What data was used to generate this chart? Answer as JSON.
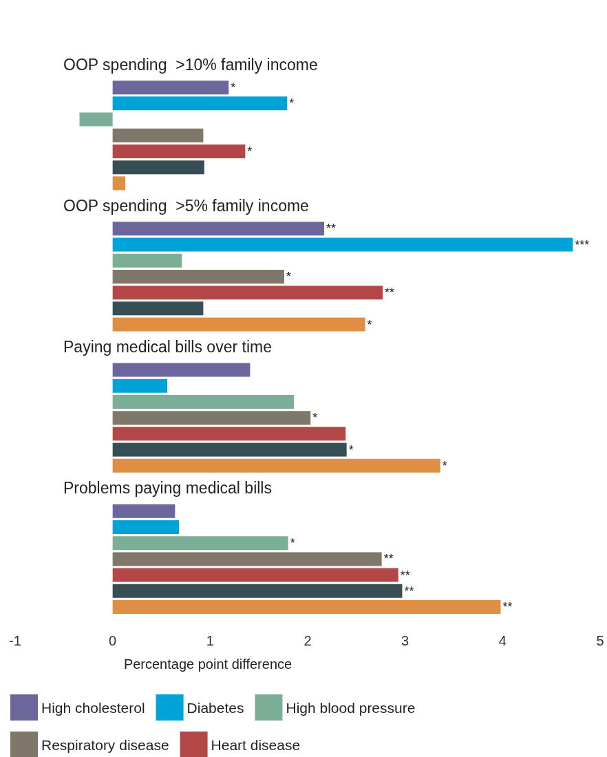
{
  "chart_data": {
    "type": "bar",
    "orientation": "horizontal",
    "xlabel": "Percentage point difference",
    "categories": [
      "OOP spending  >10% family income",
      "OOP spending  >5% family income",
      "Paying medical bills over time",
      "Problems paying medical bills"
    ],
    "xlim": [
      -1,
      5
    ],
    "xticks": [
      -1,
      0,
      1,
      2,
      3,
      4,
      5
    ],
    "legend": "bottom",
    "series": [
      {
        "name": "High cholesterol",
        "color": "#6b669b",
        "values": [
          1.19,
          2.17,
          1.41,
          0.64
        ],
        "value_labels": [
          "*",
          "**",
          null,
          null
        ]
      },
      {
        "name": "Diabetes",
        "color": "#00a3d6",
        "values": [
          1.79,
          4.72,
          0.56,
          0.68
        ],
        "value_labels": [
          "*",
          "***",
          null,
          null
        ]
      },
      {
        "name": "High blood pressure",
        "color": "#7aae96",
        "values": [
          -0.34,
          0.71,
          1.86,
          1.8
        ],
        "value_labels": [
          null,
          null,
          null,
          "*"
        ]
      },
      {
        "name": "Respiratory disease",
        "color": "#7f7769",
        "values": [
          0.93,
          1.76,
          2.03,
          2.76
        ],
        "value_labels": [
          null,
          "*",
          "*",
          "**"
        ]
      },
      {
        "name": "Heart disease",
        "color": "#b34747",
        "values": [
          1.36,
          2.77,
          2.39,
          2.93
        ],
        "value_labels": [
          "*",
          "**",
          null,
          "**"
        ]
      },
      {
        "color": "#374e55",
        "values": [
          0.94,
          0.93,
          2.4,
          2.97
        ],
        "value_labels": [
          null,
          null,
          "*",
          "**"
        ]
      },
      {
        "color": "#de8f44",
        "values": [
          0.13,
          2.59,
          3.36,
          3.98
        ],
        "value_labels": [
          null,
          "*",
          "*",
          "**"
        ]
      }
    ]
  }
}
